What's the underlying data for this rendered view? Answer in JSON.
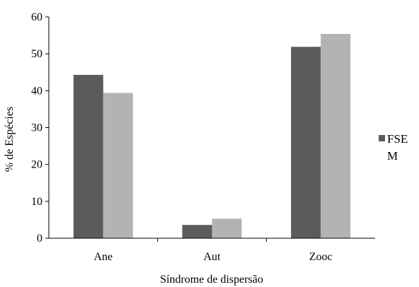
{
  "chart_data": {
    "type": "bar",
    "categories": [
      "Ane",
      "Aut",
      "Zooc"
    ],
    "series": [
      {
        "name": "FSE",
        "values": [
          44.3,
          3.6,
          51.9
        ],
        "color": "#5b5b5b"
      },
      {
        "name": "M",
        "values": [
          39.4,
          5.3,
          55.4
        ],
        "color": "#b3b3b3"
      }
    ],
    "title": "",
    "xlabel": "Síndrome de dispersão",
    "ylabel": "% de Espécies",
    "ylim": [
      0,
      60
    ],
    "yticks": [
      0,
      10,
      20,
      30,
      40,
      50,
      60
    ],
    "grid": false,
    "legend_position": "right",
    "legend_text": [
      "FSE",
      "M"
    ]
  }
}
